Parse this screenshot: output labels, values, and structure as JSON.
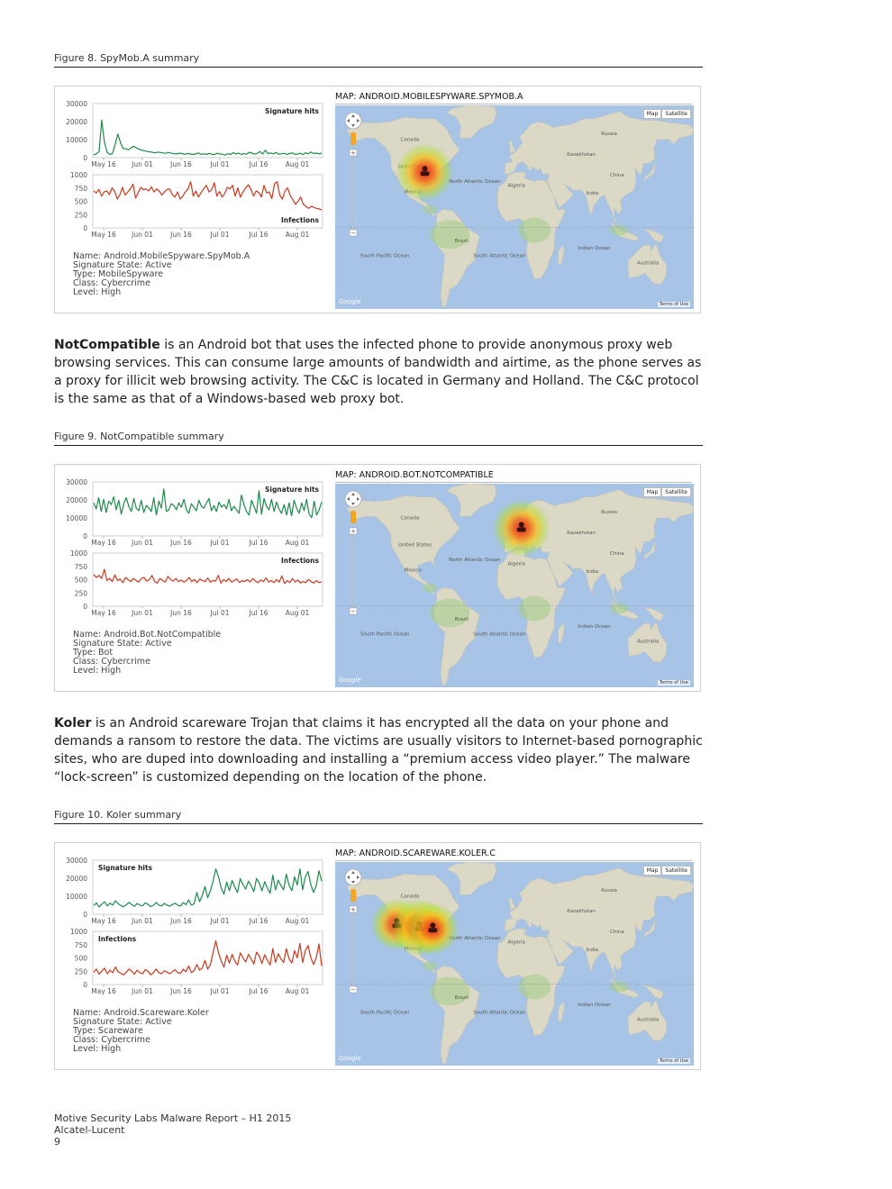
{
  "figures": [
    {
      "caption": "Figure 8. SpyMob.A summary",
      "map_title": "MAP: ANDROID.MOBILESPYWARE.SPYMOB.A",
      "meta": [
        "Name: Android.MobileSpyware.SpyMob.A",
        "Signature State: Active",
        "Type: MobileSpyware",
        "Class: Cybercrime",
        "Level: High"
      ],
      "hotspots": [
        {
          "lon": -90,
          "lat": 37,
          "r": 1
        }
      ]
    },
    {
      "caption": "Figure 9. NotCompatible summary",
      "map_title": "MAP: ANDROID.BOT.NOTCOMPATIBLE",
      "meta": [
        "Name: Android.Bot.NotCompatible",
        "Signature State: Active",
        "Type: Bot",
        "Class: Cybercrime",
        "Level: High"
      ],
      "hotspots": [
        {
          "lon": 7,
          "lat": 52,
          "r": 1
        }
      ]
    },
    {
      "caption": "Figure 10. Koler summary",
      "map_title": "MAP: ANDROID.SCAREWARE.KOLER.C",
      "meta": [
        "Name: Android.Scareware.Koler",
        "Signature State: Active",
        "Type: Scareware",
        "Class: Cybercrime",
        "Level: High"
      ],
      "hotspots": [
        {
          "lon": -118,
          "lat": 40,
          "r": 0.9
        },
        {
          "lon": -95,
          "lat": 38,
          "r": 1
        },
        {
          "lon": -82,
          "lat": 37,
          "r": 0.9
        }
      ]
    }
  ],
  "paragraphs": [
    {
      "lead": "NotCompatible",
      "text": " is an Android bot that uses the infected phone to provide anonymous proxy web browsing services. This can consume large amounts of bandwidth and airtime, as the phone serves as a proxy for illicit web browsing activity. The C&C is located in Germany and Holland. The C&C protocol is the same as that of a Windows-based web proxy bot."
    },
    {
      "lead": "Koler",
      "text": " is an Android scareware Trojan that claims it has encrypted all the data on your phone and demands a ransom to restore the data. The victims are usually visitors to Internet-based pornographic sites, who are duped into downloading and installing a “premium access video player.” The malware “lock-screen” is customized depending on the location of the phone."
    }
  ],
  "map_ui": {
    "map_btn": "Map",
    "satellite_btn": "Satellite",
    "google": "Google",
    "terms": "Terms of Use"
  },
  "map_labels": [
    {
      "text": "North Atlantic Ocean",
      "lon": -40,
      "lat": 30
    },
    {
      "text": "South Atlantic Ocean",
      "lon": -15,
      "lat": -20
    },
    {
      "text": "South Pacific Ocean",
      "lon": -130,
      "lat": -20
    },
    {
      "text": "Indian Ocean",
      "lon": 80,
      "lat": -15
    },
    {
      "text": "Canada",
      "lon": -105,
      "lat": 58
    },
    {
      "text": "United States",
      "lon": -100,
      "lat": 40
    },
    {
      "text": "Brazil",
      "lon": -53,
      "lat": -10
    },
    {
      "text": "Russia",
      "lon": 95,
      "lat": 62
    },
    {
      "text": "China",
      "lon": 103,
      "lat": 34
    },
    {
      "text": "Australia",
      "lon": 134,
      "lat": -25
    },
    {
      "text": "Kazakhstan",
      "lon": 67,
      "lat": 48
    },
    {
      "text": "Algeria",
      "lon": 2,
      "lat": 27
    },
    {
      "text": "India",
      "lon": 78,
      "lat": 22
    },
    {
      "text": "Mexico",
      "lon": -102,
      "lat": 23
    }
  ],
  "chart_data": [
    {
      "type": "line",
      "figure": "Figure 8. SpyMob.A summary",
      "x_ticks": [
        "May 16",
        "Jun 01",
        "Jun 16",
        "Jul 01",
        "Jul 16",
        "Aug 01"
      ],
      "panels": [
        {
          "name": "Signature hits",
          "label_pos": "top-right",
          "color": "#1e8a4b",
          "yticks": [
            "30000",
            "20000",
            "10000",
            "0"
          ],
          "ylim": [
            0,
            30000
          ],
          "values": [
            1500,
            2200,
            3500,
            21500,
            9000,
            3000,
            1800,
            2200,
            7500,
            13500,
            8500,
            5200,
            5000,
            4500,
            5800,
            6500,
            5500,
            4800,
            4200,
            4000,
            3500,
            3300,
            3000,
            2800,
            3200,
            2900,
            2700,
            2500,
            3000,
            2500,
            2300,
            2100,
            2600,
            2300,
            1900,
            2400,
            2100,
            1800,
            2100,
            2700,
            1900,
            2200,
            1800,
            2400,
            2000,
            1700,
            2500,
            2100,
            1900,
            1500,
            2200,
            1800,
            2900,
            2100,
            2600,
            1800,
            2300,
            1900,
            3100,
            2600,
            2000,
            2500,
            3500,
            2100,
            4300,
            2300,
            2700,
            2100,
            3000,
            1900,
            2200,
            2500,
            1800,
            2400,
            2700,
            1900,
            2000,
            2500,
            1700,
            2800,
            2200,
            3200,
            2400,
            2600,
            2100,
            2600
          ]
        },
        {
          "name": "Infections",
          "label_pos": "bottom-right",
          "color": "#c8391f",
          "yticks": [
            "1000",
            "750",
            "500",
            "250",
            "0"
          ],
          "ylim": [
            0,
            1000
          ],
          "values": [
            720,
            680,
            750,
            620,
            700,
            720,
            650,
            780,
            710,
            560,
            650,
            790,
            640,
            700,
            760,
            850,
            580,
            690,
            790,
            740,
            760,
            720,
            800,
            700,
            760,
            720,
            640,
            700,
            750,
            760,
            650,
            600,
            700,
            560,
            620,
            700,
            760,
            900,
            620,
            720,
            600,
            690,
            760,
            830,
            700,
            740,
            880,
            620,
            710,
            600,
            670,
            790,
            760,
            830,
            620,
            780,
            600,
            700,
            780,
            840,
            750,
            620,
            720,
            690,
            600,
            830,
            680,
            700,
            570,
            860,
            900,
            640,
            560,
            720,
            780,
            630,
            550,
            460,
            520,
            600,
            460,
            420,
            380,
            420,
            400,
            380,
            370,
            350
          ]
        }
      ]
    },
    {
      "type": "line",
      "figure": "Figure 9. NotCompatible summary",
      "x_ticks": [
        "May 16",
        "Jun 01",
        "Jun 16",
        "Jul 01",
        "Jul 16",
        "Aug 01"
      ],
      "panels": [
        {
          "name": "Signature hits",
          "label_pos": "top-right",
          "color": "#1e8a4b",
          "yticks": [
            "30000",
            "20000",
            "10000",
            "0"
          ],
          "ylim": [
            0,
            30000
          ],
          "values": [
            19000,
            15500,
            22000,
            14000,
            21000,
            13500,
            20000,
            18000,
            22500,
            15000,
            20500,
            12500,
            18500,
            22000,
            17000,
            14000,
            21500,
            16000,
            14500,
            20500,
            13500,
            17500,
            16000,
            14000,
            22000,
            12000,
            20000,
            16000,
            27000,
            14000,
            15000,
            18500,
            17500,
            15000,
            19000,
            16500,
            21000,
            15000,
            13000,
            18500,
            16500,
            14500,
            20500,
            17000,
            16000,
            19000,
            21500,
            14500,
            17500,
            14000,
            19500,
            16500,
            18000,
            15500,
            21000,
            14500,
            17000,
            15000,
            13000,
            23500,
            18000,
            14000,
            12000,
            20500,
            17000,
            13000,
            26000,
            12500,
            21500,
            17000,
            15000,
            21000,
            14000,
            19500,
            15500,
            13000,
            18000,
            12000,
            19000,
            11500,
            20500,
            16000,
            13000,
            19000,
            14500,
            21000,
            12500,
            10500,
            20000,
            12000,
            15000,
            19500
          ]
        },
        {
          "name": "Infections",
          "label_pos": "top-right",
          "color": "#c8391f",
          "yticks": [
            "1000",
            "750",
            "500",
            "250",
            "0"
          ],
          "ylim": [
            0,
            1000
          ],
          "values": [
            620,
            560,
            600,
            540,
            720,
            500,
            540,
            480,
            610,
            500,
            530,
            460,
            560,
            520,
            480,
            540,
            500,
            470,
            540,
            560,
            490,
            520,
            600,
            480,
            450,
            540,
            500,
            470,
            580,
            520,
            490,
            540,
            480,
            510,
            470,
            500,
            560,
            480,
            520,
            460,
            530,
            500,
            480,
            550,
            470,
            500,
            490,
            600,
            450,
            520,
            480,
            540,
            470,
            500,
            530,
            460,
            500,
            480,
            520,
            470,
            540,
            490,
            460,
            510,
            480,
            550,
            470,
            500,
            460,
            520,
            470,
            590,
            440,
            500,
            460,
            540,
            470,
            510,
            450,
            480,
            460,
            520,
            480,
            450,
            500,
            460,
            470
          ]
        }
      ]
    },
    {
      "type": "line",
      "figure": "Figure 10. Koler summary",
      "x_ticks": [
        "May 16",
        "Jun 01",
        "Jun 16",
        "Jul 01",
        "Jul 16",
        "Aug 01"
      ],
      "panels": [
        {
          "name": "Signature hits",
          "label_pos": "top-left",
          "color": "#1e8a4b",
          "yticks": [
            "30000",
            "20000",
            "10000",
            "0"
          ],
          "ylim": [
            0,
            30000
          ],
          "values": [
            5000,
            6500,
            4200,
            5800,
            7200,
            4800,
            6300,
            5200,
            7800,
            6000,
            5000,
            4300,
            5500,
            6800,
            5600,
            4600,
            6200,
            5200,
            4800,
            6500,
            5800,
            4400,
            5200,
            6800,
            5200,
            4800,
            6200,
            5300,
            4700,
            5600,
            6400,
            5100,
            4800,
            6700,
            5500,
            8300,
            5200,
            6000,
            12500,
            7200,
            10800,
            16000,
            9500,
            13600,
            19000,
            26000,
            21500,
            15000,
            11500,
            18500,
            13500,
            19500,
            15500,
            12500,
            20500,
            17000,
            14500,
            19000,
            16500,
            13000,
            20500,
            18000,
            13500,
            18800,
            15000,
            12000,
            22500,
            14000,
            19500,
            16500,
            14000,
            23000,
            16500,
            13500,
            21500,
            16800,
            26000,
            14000,
            21500,
            24500,
            17000,
            12500,
            16500,
            25000,
            19000
          ]
        },
        {
          "name": "Infections",
          "label_pos": "top-left",
          "color": "#c8391f",
          "yticks": [
            "1000",
            "750",
            "500",
            "250",
            "0"
          ],
          "ylim": [
            0,
            1000
          ],
          "values": [
            240,
            300,
            200,
            260,
            320,
            210,
            280,
            230,
            340,
            250,
            220,
            190,
            240,
            300,
            260,
            200,
            280,
            230,
            210,
            290,
            260,
            190,
            230,
            300,
            230,
            210,
            270,
            240,
            210,
            250,
            290,
            230,
            220,
            300,
            250,
            360,
            230,
            270,
            390,
            280,
            320,
            470,
            300,
            390,
            620,
            850,
            620,
            450,
            340,
            570,
            420,
            590,
            460,
            380,
            620,
            520,
            440,
            590,
            500,
            400,
            630,
            560,
            410,
            580,
            470,
            380,
            700,
            430,
            600,
            500,
            430,
            700,
            500,
            420,
            660,
            520,
            800,
            430,
            660,
            760,
            520,
            390,
            520,
            790,
            360
          ]
        }
      ]
    }
  ],
  "footer": {
    "line1": "Motive Security Labs Malware Report – H1 2015",
    "line2": "Alcatel-Lucent",
    "page": "9"
  }
}
